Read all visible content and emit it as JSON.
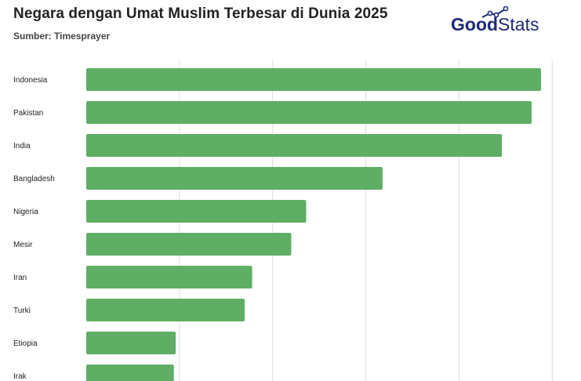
{
  "header": {
    "title": "Negara dengan Umat Muslim Terbesar di Dunia 2025",
    "source": "Sumber: Timesprayer"
  },
  "logo": {
    "part1": "Good",
    "part2": "Stats",
    "icon": "chart-line-icon"
  },
  "colors": {
    "bar": "#5fae65",
    "grid": "#dddddd",
    "title": "#222222",
    "logo": "#1e2a78"
  },
  "chart_data": {
    "type": "bar",
    "orientation": "horizontal",
    "categories": [
      "Indonesia",
      "Pakistan",
      "India",
      "Bangladesh",
      "Nigeria",
      "Mesir",
      "Iran",
      "Turki",
      "Etiopia",
      "Irak"
    ],
    "values": [
      244,
      239,
      223,
      159,
      118,
      110,
      89,
      85,
      48,
      47
    ],
    "xlim": [
      0,
      250
    ],
    "grid": true,
    "legend": "none"
  }
}
